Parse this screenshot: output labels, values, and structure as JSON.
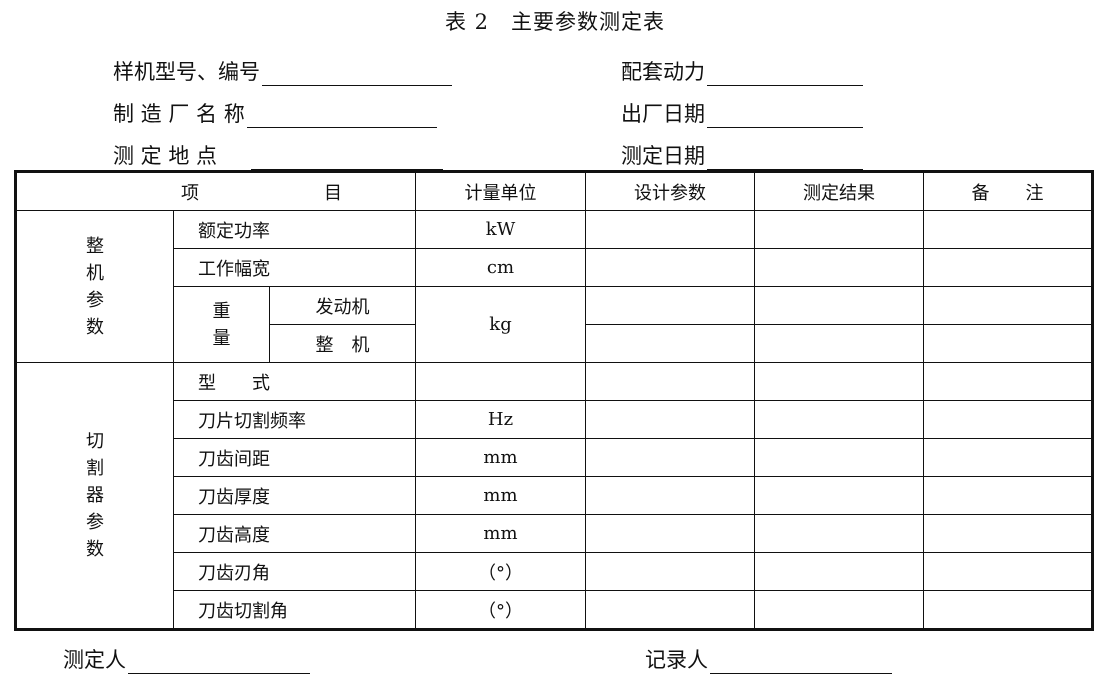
{
  "title": "表 2　主要参数测定表",
  "fields": {
    "model_no": "样机型号、编号",
    "power": "配套动力",
    "maker": "制 造 厂 名 称",
    "date_made": "出厂日期",
    "site": "测 定 地 点",
    "date_test": "测定日期"
  },
  "table": {
    "header": {
      "item_a": "项",
      "item_b": "目",
      "unit": "计量单位",
      "design": "设计参数",
      "result": "测定结果",
      "remark": "备　　注"
    },
    "group1": "整机参数",
    "group2": "切割器参数",
    "weight": "重量",
    "rows": [
      {
        "name": "额定功率",
        "unit": "kW"
      },
      {
        "name": "工作幅宽",
        "unit": "cm"
      },
      {
        "name": "发动机",
        "unit": "kg"
      },
      {
        "name": "整　机"
      },
      {
        "name": "型　　式",
        "unit": ""
      },
      {
        "name": "刀片切割频率",
        "unit": "Hz"
      },
      {
        "name": "刀齿间距",
        "unit": "mm"
      },
      {
        "name": "刀齿厚度",
        "unit": "mm"
      },
      {
        "name": "刀齿高度",
        "unit": "mm"
      },
      {
        "name": "刀齿刃角",
        "unit": "（°）"
      },
      {
        "name": "刀齿切割角",
        "unit": "（°）"
      }
    ]
  },
  "footer": {
    "tester": "测定人",
    "recorder": "记录人"
  }
}
